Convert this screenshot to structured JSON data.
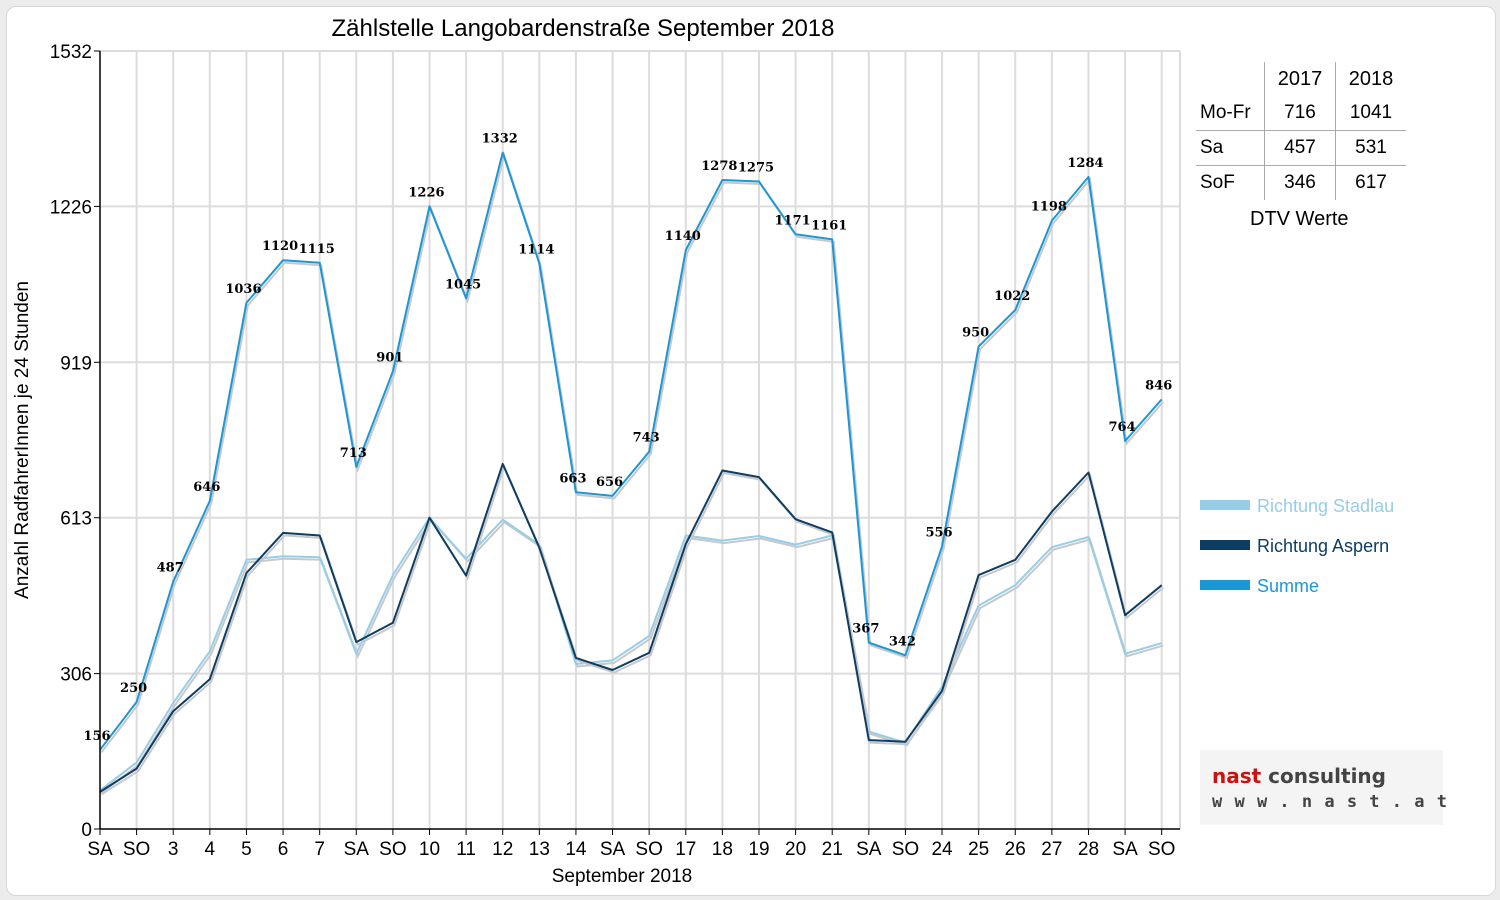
{
  "chart_data": {
    "type": "line",
    "title": "Zählstelle Langobardenstraße September 2018",
    "xlabel": "September 2018",
    "ylabel": "Anzahl RadfahrerInnen je 24 Stunden",
    "ylim": [
      0,
      1532
    ],
    "yticks": [
      0,
      306,
      613,
      919,
      1226,
      1532
    ],
    "grid": true,
    "legend_position": "right",
    "categories": [
      "SA",
      "SO",
      "3",
      "4",
      "5",
      "6",
      "7",
      "SA",
      "SO",
      "10",
      "11",
      "12",
      "13",
      "14",
      "SA",
      "SO",
      "17",
      "18",
      "19",
      "20",
      "21",
      "SA",
      "SO",
      "24",
      "25",
      "26",
      "27",
      "28",
      "SA",
      "SO"
    ],
    "weekend_color": "#e00000",
    "weekend_indices": [
      1,
      8,
      15,
      22,
      29
    ],
    "series": [
      {
        "name": "Richtung Stadlau",
        "color": "#97cde9",
        "values": [
          76,
          131,
          248,
          350,
          530,
          537,
          535,
          345,
          500,
          613,
          532,
          609,
          560,
          325,
          332,
          380,
          578,
          568,
          577,
          560,
          578,
          192,
          170,
          280,
          440,
          480,
          555,
          575,
          345,
          366
        ]
      },
      {
        "name": "Richtung Aspern",
        "color": "#0d3d63",
        "values": [
          73,
          119,
          232,
          295,
          504,
          583,
          578,
          368,
          406,
          613,
          499,
          719,
          554,
          337,
          313,
          347,
          561,
          706,
          693,
          610,
          584,
          175,
          172,
          272,
          500,
          530,
          625,
          702,
          421,
          480
        ]
      },
      {
        "name": "Summe",
        "color": "#1c97d6",
        "values": [
          156,
          250,
          487,
          646,
          1036,
          1120,
          1115,
          713,
          901,
          1226,
          1045,
          1332,
          1114,
          663,
          656,
          743,
          1140,
          1278,
          1275,
          1171,
          1161,
          367,
          342,
          556,
          950,
          1022,
          1198,
          1284,
          764,
          846
        ]
      }
    ],
    "data_labels_series": "Summe"
  },
  "dtv_table": {
    "columns": [
      "2017",
      "2018"
    ],
    "rows": [
      {
        "label": "Mo-Fr",
        "v2017": "716",
        "v2018": "1041"
      },
      {
        "label": "Sa",
        "v2017": "457",
        "v2018": "531"
      },
      {
        "label": "SoF",
        "v2017": "346",
        "v2018": "617"
      }
    ],
    "caption": "DTV Werte"
  },
  "logo": {
    "word1": "nast",
    "word2": "consulting",
    "url": "w w w . n a s t . a t",
    "accent": "#cc1111"
  }
}
